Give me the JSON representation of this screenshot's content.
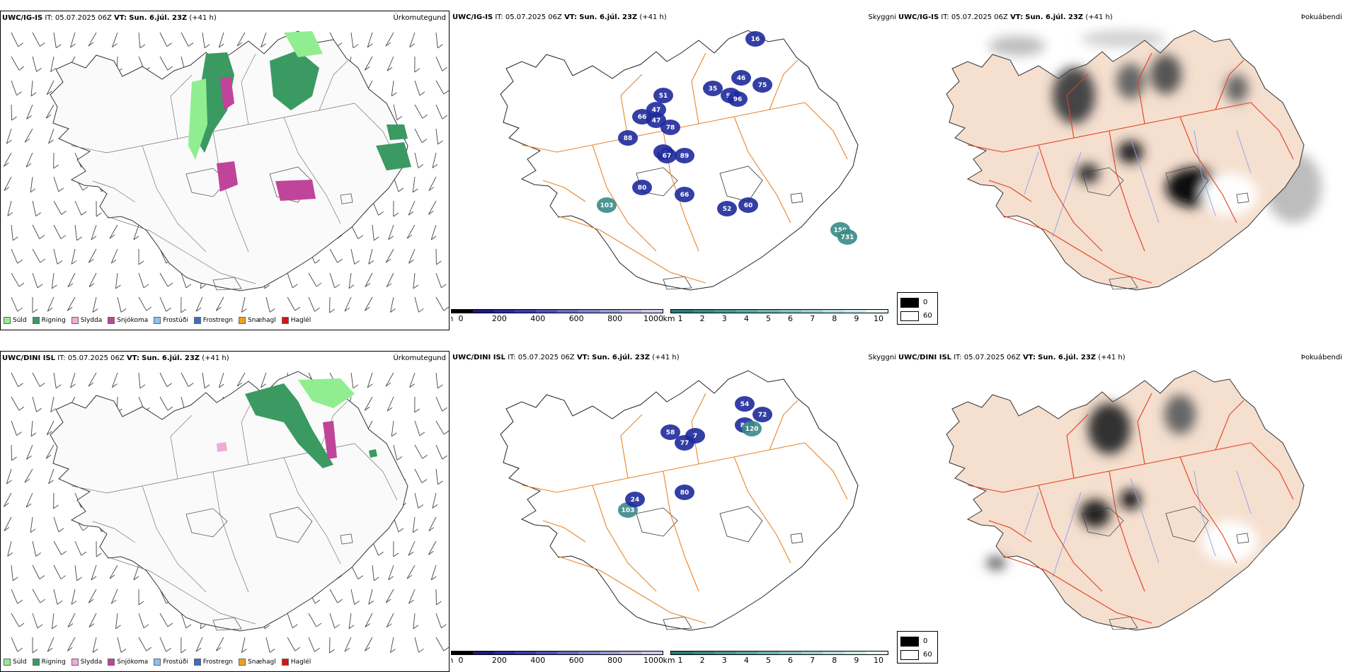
{
  "rows": [
    {
      "precip": {
        "model_label": "UWC/IG-IS",
        "it_label": "IT:",
        "it_value": "05.07.2025 06Z",
        "vt_label": "VT:",
        "vt_value": "Sun. 6.júl. 23Z",
        "lead": "(+41 h)",
        "name": "Úrkomutegund"
      },
      "cloud": {
        "model_label": "UWC/IG-IS",
        "it_label": "IT:",
        "it_value": "05.07.2025 06Z",
        "vt_label": "VT:",
        "vt_value": "Sun. 6.júl. 23Z",
        "lead": "(+41 h)",
        "name": "Skyggni",
        "peaks": [
          "16",
          "51",
          "35",
          "46",
          "75",
          "47",
          "95",
          "96",
          "66",
          "47",
          "78",
          "88",
          "66",
          "67",
          "89",
          "80",
          "66",
          "103",
          "52",
          "60",
          "159",
          "731"
        ]
      },
      "fog": {
        "model_label": "UWC/IG-IS",
        "it_label": "IT:",
        "it_value": "05.07.2025 06Z",
        "vt_label": "VT:",
        "vt_value": "Sun. 6.júl. 23Z",
        "lead": "(+41 h)",
        "name": "Þokuábendi"
      }
    },
    {
      "precip": {
        "model_label": "UWC/DINI ISL",
        "it_label": "IT:",
        "it_value": "05.07.2025 06Z",
        "vt_label": "VT:",
        "vt_value": "Sun. 6.júl. 23Z",
        "lead": "(+41 h)",
        "name": "Úrkomutegund"
      },
      "cloud": {
        "model_label": "UWC/DINI ISL",
        "it_label": "IT:",
        "it_value": "05.07.2025 06Z",
        "vt_label": "VT:",
        "vt_value": "Sun. 6.júl. 23Z",
        "lead": "(+41 h)",
        "name": "Skyggni",
        "peaks": [
          "54",
          "72",
          "89",
          "120",
          "58",
          "7",
          "77",
          "80",
          "103",
          "24"
        ]
      },
      "fog": {
        "model_label": "UWC/DINI ISL",
        "it_label": "IT:",
        "it_value": "05.07.2025 06Z",
        "vt_label": "VT:",
        "vt_value": "Sun. 6.júl. 23Z",
        "lead": "(+41 h)",
        "name": "Þokuábendi"
      }
    }
  ],
  "precip_legend": [
    {
      "label": "Súld",
      "color": "#90ee90"
    },
    {
      "label": "Rigning",
      "color": "#3a9a62"
    },
    {
      "label": "Slydda",
      "color": "#f4a9d8"
    },
    {
      "label": "Snjókoma",
      "color": "#c0449a"
    },
    {
      "label": "Frostúði",
      "color": "#90bff0"
    },
    {
      "label": "Frostregn",
      "color": "#3a70c0"
    },
    {
      "label": "Snæhagl",
      "color": "#f0a020"
    },
    {
      "label": "Haglél",
      "color": "#e01010"
    }
  ],
  "ceiling_scale": {
    "unit": "m",
    "ticks": [
      "0",
      "200",
      "400",
      "600",
      "800",
      "1000"
    ],
    "colors": [
      "#000000",
      "#1a1a80",
      "#2a2a9a",
      "#3a3aa8",
      "#5050b4",
      "#6a6abe",
      "#8080c8",
      "#9898d2",
      "#b0b0dc",
      "#c8c8e6"
    ]
  },
  "visibility_scale": {
    "unit": "km",
    "ticks": [
      "1",
      "2",
      "3",
      "4",
      "5",
      "6",
      "7",
      "8",
      "9",
      "10"
    ],
    "colors": [
      "#2a7a78",
      "#3a8886",
      "#4a9694",
      "#5aa4a2",
      "#6eb2b0",
      "#84c0be",
      "#9acecc",
      "#b2dcda",
      "#cae8e6",
      "#e4f4f2"
    ]
  },
  "fog_legend": [
    {
      "label": "0",
      "color": "#000000"
    },
    {
      "label": "60",
      "color": "#ffffff"
    }
  ],
  "colors": {
    "land": "#f5dfcf",
    "roads": "#e8862a",
    "fog_roads": "#e04020",
    "rivers": "#8aa0f0",
    "ceiling_blob": "#1e2a9c",
    "vis_blob": "#3a8a86",
    "rain": "#3a9a62",
    "drizzle": "#90ee90",
    "snow": "#c0449a"
  }
}
